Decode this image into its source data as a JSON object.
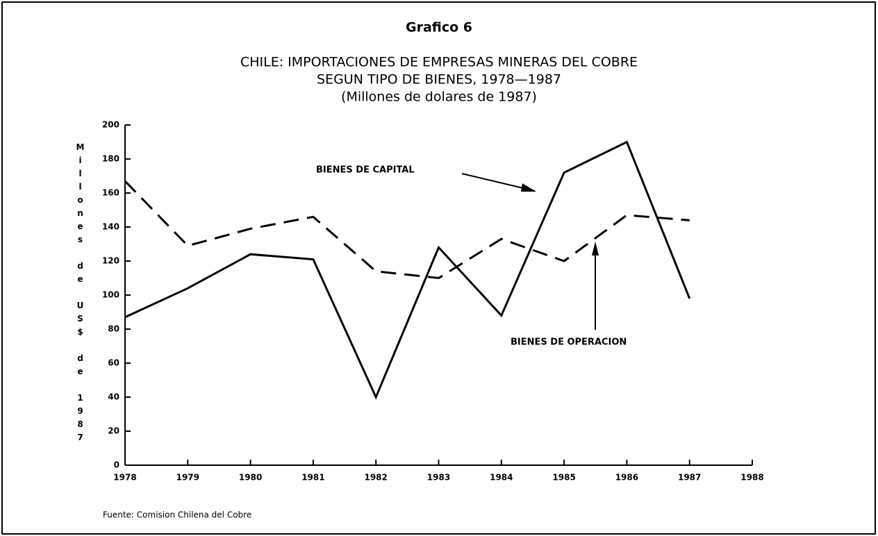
{
  "chart_data": {
    "type": "line",
    "header": "Grafico 6",
    "title": [
      "CHILE: IMPORTACIONES DE EMPRESAS MINERAS DEL COBRE",
      "SEGUN TIPO DE BIENES, 1978—1987",
      "(Millones de dolares de 1987)"
    ],
    "ylabel": "Millones de US$ de 1987",
    "source": "Fuente: Comision Chilena del Cobre",
    "x": [
      1978,
      1979,
      1980,
      1981,
      1982,
      1983,
      1984,
      1985,
      1986,
      1987
    ],
    "xlim": [
      1978,
      1988
    ],
    "xticks": [
      1978,
      1979,
      1980,
      1981,
      1982,
      1983,
      1984,
      1985,
      1986,
      1987,
      1988
    ],
    "ylim": [
      0,
      200
    ],
    "yticks": [
      0,
      20,
      40,
      60,
      80,
      100,
      120,
      140,
      160,
      180,
      200
    ],
    "series": [
      {
        "name": "BIENES DE CAPITAL",
        "color": "#000000",
        "dash": false,
        "values": [
          87,
          104,
          124,
          121,
          40,
          128,
          88,
          172,
          190,
          98
        ]
      },
      {
        "name": "BIENES DE OPERACION",
        "color": "#000000",
        "dash": true,
        "values": [
          167,
          129,
          139,
          146,
          114,
          110,
          133,
          120,
          147,
          144
        ]
      }
    ]
  }
}
